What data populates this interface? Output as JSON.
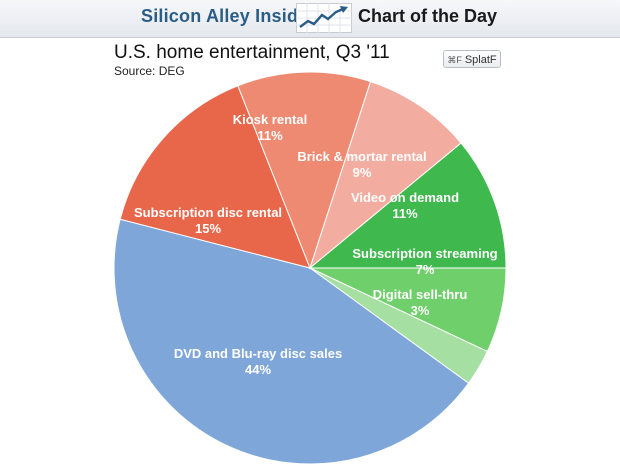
{
  "header": {
    "brand": "Silicon Alley Insider",
    "section": "Chart of the Day",
    "icon": "rising-line-chart-icon"
  },
  "badge": {
    "icon": "splatf-logo-icon",
    "icon_text": "⌘F",
    "label": "SplatF"
  },
  "chart_data": {
    "type": "pie",
    "title": "U.S. home entertainment, Q3 '11",
    "source": "Source: DEG",
    "start_angle_deg": 0,
    "direction": "clockwise from 3 o'clock",
    "slices": [
      {
        "label": "Subscription streaming",
        "value": 7,
        "value_label": "7%",
        "color": "#6fcf6a"
      },
      {
        "label": "Digital sell-thru",
        "value": 3,
        "value_label": "3%",
        "color": "#a6dfa2"
      },
      {
        "label": "DVD and Blu-ray disc sales",
        "value": 44,
        "value_label": "44%",
        "color": "#7ea6d8"
      },
      {
        "label": "Subscription disc rental",
        "value": 15,
        "value_label": "15%",
        "color": "#e8674b"
      },
      {
        "label": "Kiosk rental",
        "value": 11,
        "value_label": "11%",
        "color": "#ef8a72"
      },
      {
        "label": "Brick & mortar rental",
        "value": 9,
        "value_label": "9%",
        "color": "#f3ada0"
      },
      {
        "label": "Video on demand",
        "value": 11,
        "value_label": "11%",
        "color": "#3fb84d"
      }
    ]
  }
}
